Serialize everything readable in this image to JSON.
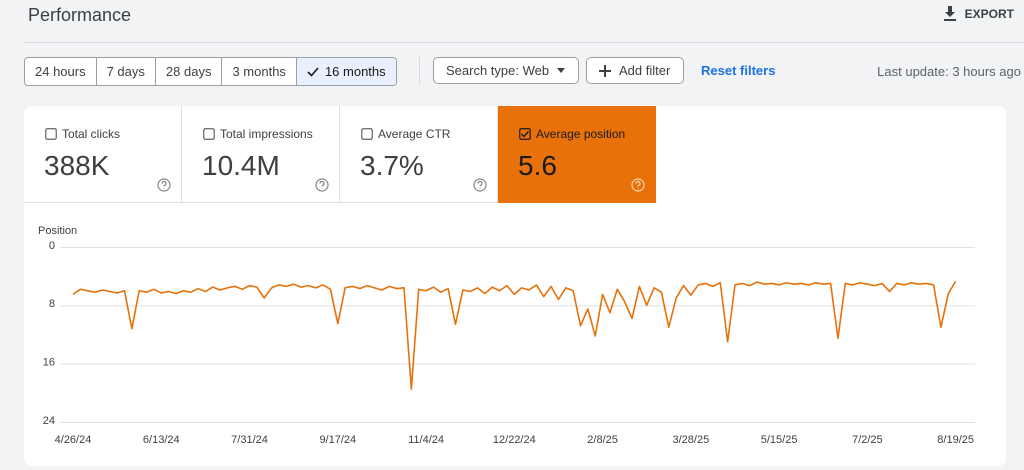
{
  "header": {
    "title": "Performance",
    "export": "EXPORT"
  },
  "toolbar": {
    "date_ranges": [
      "24 hours",
      "7 days",
      "28 days",
      "3 months",
      "16 months"
    ],
    "selected_index": 4,
    "search_type": "Search type: Web",
    "add_filter": "Add filter",
    "reset_filters": "Reset filters",
    "last_update": "Last update: 3 hours ago"
  },
  "metrics": {
    "active_color": "#e8710a",
    "items": [
      {
        "label": "Total clicks",
        "value": "388K",
        "checked": false
      },
      {
        "label": "Total impressions",
        "value": "10.4M",
        "checked": false
      },
      {
        "label": "Average CTR",
        "value": "3.7%",
        "checked": false
      },
      {
        "label": "Average position",
        "value": "5.6",
        "checked": true
      }
    ]
  },
  "chart_data": {
    "type": "line",
    "y_label": "Position",
    "reversed_y": true,
    "grid": true,
    "ylim": [
      0,
      24
    ],
    "yticks": [
      0,
      8,
      16,
      24
    ],
    "xlim": [
      0,
      484
    ],
    "xticks": [
      {
        "value": 0,
        "label": "4/26/24"
      },
      {
        "value": 48,
        "label": "6/13/24"
      },
      {
        "value": 96,
        "label": "7/31/24"
      },
      {
        "value": 144,
        "label": "9/17/24"
      },
      {
        "value": 192,
        "label": "11/4/24"
      },
      {
        "value": 240,
        "label": "12/22/24"
      },
      {
        "value": 288,
        "label": "2/8/25"
      },
      {
        "value": 336,
        "label": "3/28/25"
      },
      {
        "value": 384,
        "label": "5/15/25"
      },
      {
        "value": 432,
        "label": "7/2/25"
      },
      {
        "value": 480,
        "label": "8/19/25"
      }
    ],
    "x": [
      0,
      4,
      8,
      12,
      16,
      20,
      24,
      28,
      32,
      36,
      40,
      44,
      48,
      52,
      56,
      60,
      64,
      68,
      72,
      76,
      80,
      84,
      88,
      92,
      96,
      100,
      104,
      108,
      112,
      116,
      120,
      124,
      128,
      132,
      136,
      140,
      144,
      148,
      152,
      156,
      160,
      164,
      168,
      172,
      176,
      180,
      184,
      188,
      192,
      196,
      200,
      204,
      208,
      212,
      216,
      220,
      224,
      228,
      232,
      236,
      240,
      244,
      248,
      252,
      256,
      260,
      264,
      268,
      272,
      276,
      280,
      284,
      288,
      292,
      296,
      300,
      304,
      308,
      312,
      316,
      320,
      324,
      328,
      332,
      336,
      340,
      344,
      348,
      352,
      356,
      360,
      364,
      368,
      372,
      376,
      380,
      384,
      388,
      392,
      396,
      400,
      404,
      408,
      412,
      416,
      420,
      424,
      428,
      432,
      436,
      440,
      444,
      448,
      452,
      456,
      460,
      464,
      468,
      472,
      476,
      480
    ],
    "series": [
      {
        "color": "#e8710a",
        "values": [
          6.5,
          5.8,
          6.0,
          6.2,
          5.9,
          6.1,
          6.3,
          6.0,
          11.2,
          6.0,
          6.2,
          5.8,
          6.3,
          6.1,
          6.4,
          6.0,
          6.2,
          5.7,
          6.1,
          5.5,
          5.9,
          5.6,
          5.4,
          5.8,
          5.3,
          5.5,
          7.0,
          5.6,
          5.2,
          5.4,
          5.1,
          5.5,
          5.3,
          5.6,
          5.2,
          5.8,
          10.5,
          5.6,
          5.4,
          5.7,
          5.3,
          5.6,
          5.9,
          5.4,
          5.7,
          5.6,
          19.5,
          5.8,
          6.0,
          5.5,
          6.2,
          5.7,
          10.6,
          5.9,
          6.1,
          5.6,
          6.4,
          5.5,
          6.0,
          5.3,
          6.5,
          5.6,
          5.9,
          5.2,
          6.8,
          5.4,
          7.2,
          5.6,
          6.0,
          10.8,
          8.5,
          12.2,
          6.5,
          9.0,
          5.8,
          7.5,
          9.8,
          5.4,
          8.0,
          5.6,
          6.2,
          11.0,
          7.0,
          5.3,
          6.6,
          5.2,
          5.0,
          5.4,
          4.9,
          13.0,
          5.2,
          5.0,
          5.3,
          4.8,
          5.1,
          5.0,
          5.2,
          4.9,
          5.1,
          5.0,
          5.2,
          4.9,
          5.1,
          5.0,
          12.5,
          5.0,
          5.2,
          4.9,
          5.1,
          5.3,
          5.0,
          6.1,
          5.0,
          5.2,
          4.9,
          5.1,
          5.0,
          5.2,
          11.0,
          6.4,
          4.7
        ]
      }
    ]
  }
}
